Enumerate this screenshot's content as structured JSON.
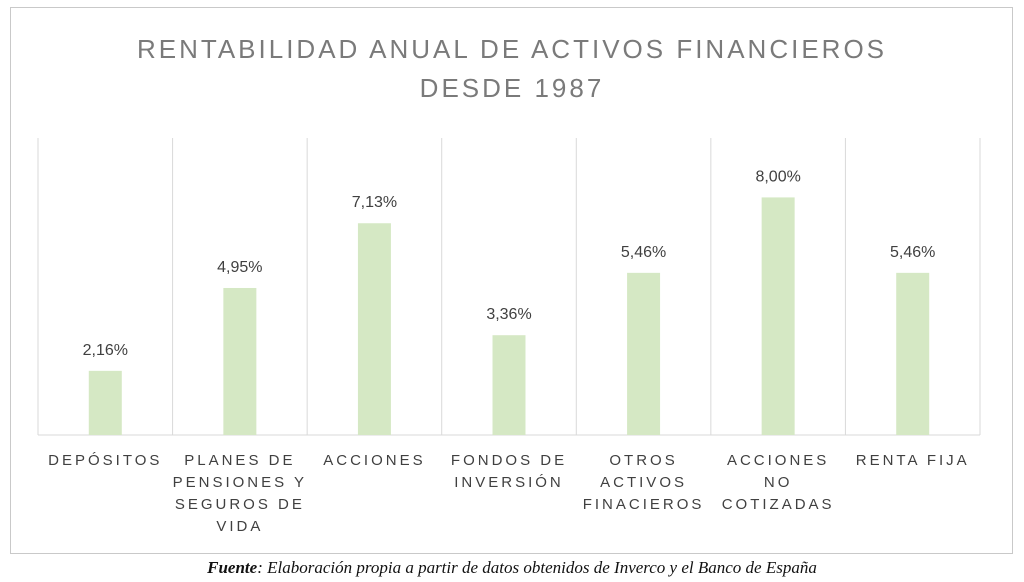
{
  "chart_data": {
    "type": "bar",
    "title": [
      "RENTABILIDAD ANUAL DE ACTIVOS FINANCIEROS",
      "DESDE 1987"
    ],
    "categories": [
      [
        "DEPÓSITOS"
      ],
      [
        "PLANES DE",
        "PENSIONES Y",
        "SEGUROS DE",
        "VIDA"
      ],
      [
        "ACCIONES"
      ],
      [
        "FONDOS DE",
        "INVERSIÓN"
      ],
      [
        "OTROS",
        "ACTIVOS",
        "FINACIEROS"
      ],
      [
        "ACCIONES",
        "NO",
        "COTIZADAS"
      ],
      [
        "RENTA FIJA"
      ]
    ],
    "values": [
      2.16,
      4.95,
      7.13,
      3.36,
      5.46,
      8.0,
      5.46
    ],
    "value_labels": [
      "2,16%",
      "4,95%",
      "7,13%",
      "3,36%",
      "5,46%",
      "8,00%",
      "5,46%"
    ],
    "ylim": [
      0,
      10
    ],
    "bar_color": "#d5e8c4",
    "grid": "vertical-separators",
    "legend": "none"
  },
  "source": {
    "label": "Fuente",
    "text": ": Elaboración propia a partir de datos obtenidos de Inverco y el Banco de España"
  }
}
